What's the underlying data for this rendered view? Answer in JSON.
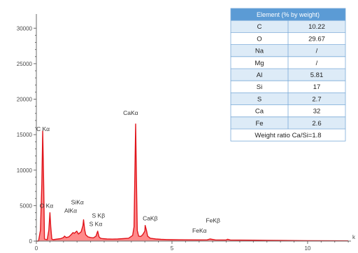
{
  "chart_data": {
    "type": "line",
    "title": "",
    "xlabel": "",
    "ylabel": "",
    "x_axis_unit": "k",
    "xlim": [
      0,
      11.6
    ],
    "ylim": [
      0,
      32000
    ],
    "y_ticks": [
      {
        "value": 0,
        "label": "0"
      },
      {
        "value": 5000,
        "label": "5000"
      },
      {
        "value": 10000,
        "label": "10000"
      },
      {
        "value": 15000,
        "label": "15000"
      },
      {
        "value": 20000,
        "label": "20000"
      },
      {
        "value": 25000,
        "label": "25000"
      },
      {
        "value": 30000,
        "label": "30000"
      }
    ],
    "x_ticks": [
      {
        "value": 0,
        "label": "0"
      },
      {
        "value": 5,
        "label": "5"
      },
      {
        "value": 10,
        "label": "10"
      }
    ],
    "grid": false,
    "legend": "none",
    "series": [
      {
        "color": "#e0141b",
        "x": [
          0.0,
          0.08,
          0.15,
          0.2,
          0.235,
          0.27,
          0.3,
          0.4,
          0.46,
          0.5,
          0.53,
          0.57,
          0.62,
          0.7,
          0.8,
          0.9,
          1.0,
          1.04,
          1.1,
          1.2,
          1.28,
          1.35,
          1.4,
          1.49,
          1.55,
          1.65,
          1.72,
          1.74,
          1.78,
          1.82,
          1.9,
          2.0,
          2.1,
          2.2,
          2.26,
          2.31,
          2.36,
          2.44,
          2.6,
          2.8,
          3.0,
          3.2,
          3.4,
          3.55,
          3.6,
          3.66,
          3.69,
          3.72,
          3.77,
          3.85,
          3.92,
          4.0,
          4.01,
          4.06,
          4.1,
          4.2,
          4.4,
          4.6,
          4.8,
          5.0,
          5.5,
          6.0,
          6.3,
          6.4,
          6.6,
          7.0,
          7.05,
          7.15,
          7.5,
          8.0,
          8.5,
          9.0,
          10.0,
          11.0,
          11.5
        ],
        "y": [
          0,
          0,
          1500,
          8000,
          15500,
          8000,
          300,
          200,
          1500,
          4000,
          2000,
          300,
          200,
          250,
          300,
          350,
          500,
          700,
          500,
          600,
          900,
          1200,
          1100,
          1400,
          1000,
          1300,
          2200,
          3000,
          1600,
          900,
          600,
          500,
          450,
          700,
          1400,
          600,
          400,
          350,
          300,
          280,
          300,
          350,
          400,
          800,
          2000,
          16500,
          9000,
          1500,
          700,
          650,
          900,
          1400,
          2200,
          1500,
          700,
          400,
          300,
          250,
          220,
          200,
          180,
          170,
          180,
          300,
          170,
          160,
          260,
          160,
          140,
          130,
          110,
          90,
          60,
          40,
          30
        ]
      }
    ],
    "annotations": [
      {
        "text": "C Kα",
        "x": 0.0,
        "y": 15500
      },
      {
        "text": "O Kα",
        "x": 0.12,
        "y": 4700
      },
      {
        "text": "SiKα",
        "x": 1.28,
        "y": 5200
      },
      {
        "text": "AlKα",
        "x": 1.03,
        "y": 4000
      },
      {
        "text": "S Kβ",
        "x": 2.05,
        "y": 3300
      },
      {
        "text": "S Kα",
        "x": 1.95,
        "y": 2100
      },
      {
        "text": "CaKα",
        "x": 3.2,
        "y": 17800
      },
      {
        "text": "CaKβ",
        "x": 3.92,
        "y": 2900
      },
      {
        "text": "FeKβ",
        "x": 6.25,
        "y": 2600
      },
      {
        "text": "FeKα",
        "x": 5.75,
        "y": 1200
      }
    ]
  },
  "composition_table": {
    "header": "Element (% by weight)",
    "rows": [
      {
        "element": "C",
        "value": "10.22"
      },
      {
        "element": "O",
        "value": "29.67"
      },
      {
        "element": "Na",
        "value": "/"
      },
      {
        "element": "Mg",
        "value": "/"
      },
      {
        "element": "Al",
        "value": "5.81"
      },
      {
        "element": "Si",
        "value": "17"
      },
      {
        "element": "S",
        "value": "2.7"
      },
      {
        "element": "Ca",
        "value": "32"
      },
      {
        "element": "Fe",
        "value": "2.6"
      }
    ],
    "footer": "Weight ratio Ca/Si=1.8",
    "header_color": "#5b9bd5",
    "band_color": "#ddebf7"
  }
}
